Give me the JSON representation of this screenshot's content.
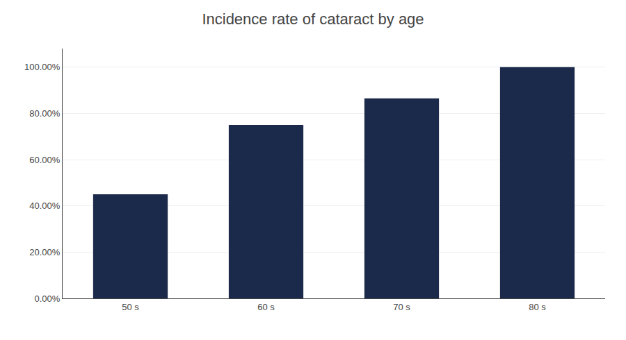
{
  "chart_data": {
    "type": "bar",
    "title": "Incidence rate of cataract by age",
    "categories": [
      "50 s",
      "60 s",
      "70 s",
      "80 s"
    ],
    "values": [
      0.45,
      0.75,
      0.865,
      1.0
    ],
    "color": "#1b2a4a",
    "ylim": [
      0,
      1.08
    ],
    "yticks": [
      {
        "value": 0.0,
        "label": "0.00%"
      },
      {
        "value": 0.2,
        "label": "20.00%"
      },
      {
        "value": 0.4,
        "label": "40.00%"
      },
      {
        "value": 0.6,
        "label": "60.00%"
      },
      {
        "value": 0.8,
        "label": "80.00%"
      },
      {
        "value": 1.0,
        "label": "100.00%"
      }
    ],
    "grid": true
  }
}
